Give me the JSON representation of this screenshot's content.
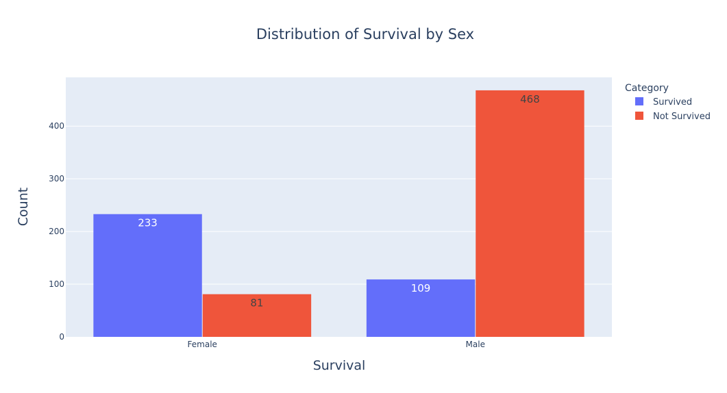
{
  "chart_data": {
    "type": "bar",
    "title": "Distribution of Survival by Sex",
    "xlabel": "Survival",
    "ylabel": "Count",
    "categories": [
      "Female",
      "Male"
    ],
    "series": [
      {
        "name": "Survived",
        "values": [
          233,
          109
        ],
        "color": "#636efa",
        "label_color": "#ffffff"
      },
      {
        "name": "Not Survived",
        "values": [
          81,
          468
        ],
        "color": "#ef553b",
        "label_color": "#444444"
      }
    ],
    "ylim": [
      0,
      492.6
    ],
    "yticks": [
      0,
      100,
      200,
      300,
      400
    ],
    "grid": true,
    "legend": {
      "title": "Category",
      "placement": "top-right"
    },
    "plot_background": "#e5ecf6",
    "text_color": "#2a3f5f"
  }
}
